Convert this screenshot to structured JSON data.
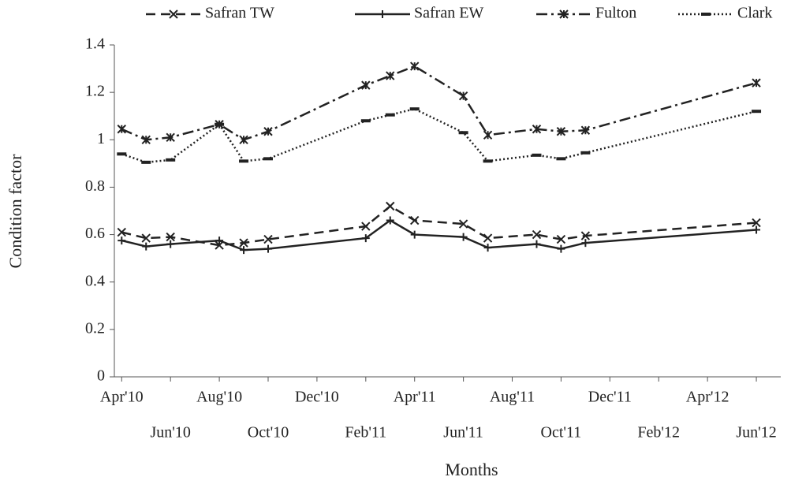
{
  "chart_data": {
    "type": "line",
    "x_label": "Months",
    "y_label": "Condition factor",
    "x": [
      0,
      1,
      2,
      4,
      5,
      6,
      10,
      11,
      12,
      14,
      15,
      17,
      18,
      19,
      26
    ],
    "xlim": [
      -0.3,
      27
    ],
    "xticks": [
      {
        "value": 0,
        "label": "Apr'10"
      },
      {
        "value": 2,
        "label": "Jun'10"
      },
      {
        "value": 4,
        "label": "Aug'10"
      },
      {
        "value": 6,
        "label": "Oct'10"
      },
      {
        "value": 8,
        "label": "Dec'10"
      },
      {
        "value": 10,
        "label": "Feb'11"
      },
      {
        "value": 12,
        "label": "Apr'11"
      },
      {
        "value": 14,
        "label": "Jun'11"
      },
      {
        "value": 16,
        "label": "Aug'11"
      },
      {
        "value": 18,
        "label": "Oct'11"
      },
      {
        "value": 20,
        "label": "Dec'11"
      },
      {
        "value": 22,
        "label": "Feb'12"
      },
      {
        "value": 24,
        "label": "Apr'12"
      },
      {
        "value": 26,
        "label": "Jun'12"
      }
    ],
    "ylim": [
      0,
      1.4
    ],
    "yticks": [
      0,
      0.2,
      0.4,
      0.6,
      0.8,
      1,
      1.2,
      1.4
    ],
    "grid": false,
    "legend": "top",
    "series": [
      {
        "name": "Safran TW",
        "color": "#222222",
        "dash": "12,7",
        "marker": "x",
        "values": [
          0.61,
          0.585,
          0.59,
          0.555,
          0.565,
          0.58,
          0.635,
          0.72,
          0.66,
          0.645,
          0.585,
          0.6,
          0.58,
          0.595,
          0.65
        ]
      },
      {
        "name": "Safran EW",
        "color": "#222222",
        "dash": "none",
        "marker": "+",
        "values": [
          0.575,
          0.55,
          0.56,
          0.575,
          0.535,
          0.54,
          0.585,
          0.66,
          0.6,
          0.59,
          0.545,
          0.56,
          0.54,
          0.565,
          0.62
        ]
      },
      {
        "name": "Fulton",
        "color": "#222222",
        "dash": "14,5,3,5",
        "marker": "*",
        "values": [
          1.045,
          1.0,
          1.01,
          1.065,
          1.0,
          1.035,
          1.23,
          1.27,
          1.31,
          1.185,
          1.02,
          1.045,
          1.035,
          1.04,
          1.24
        ]
      },
      {
        "name": "Clark",
        "color": "#222222",
        "dash": "2,3",
        "marker": "-",
        "values": [
          0.94,
          0.905,
          0.915,
          1.065,
          0.91,
          0.92,
          1.08,
          1.105,
          1.13,
          1.03,
          0.91,
          0.935,
          0.92,
          0.945,
          1.12
        ]
      }
    ]
  }
}
